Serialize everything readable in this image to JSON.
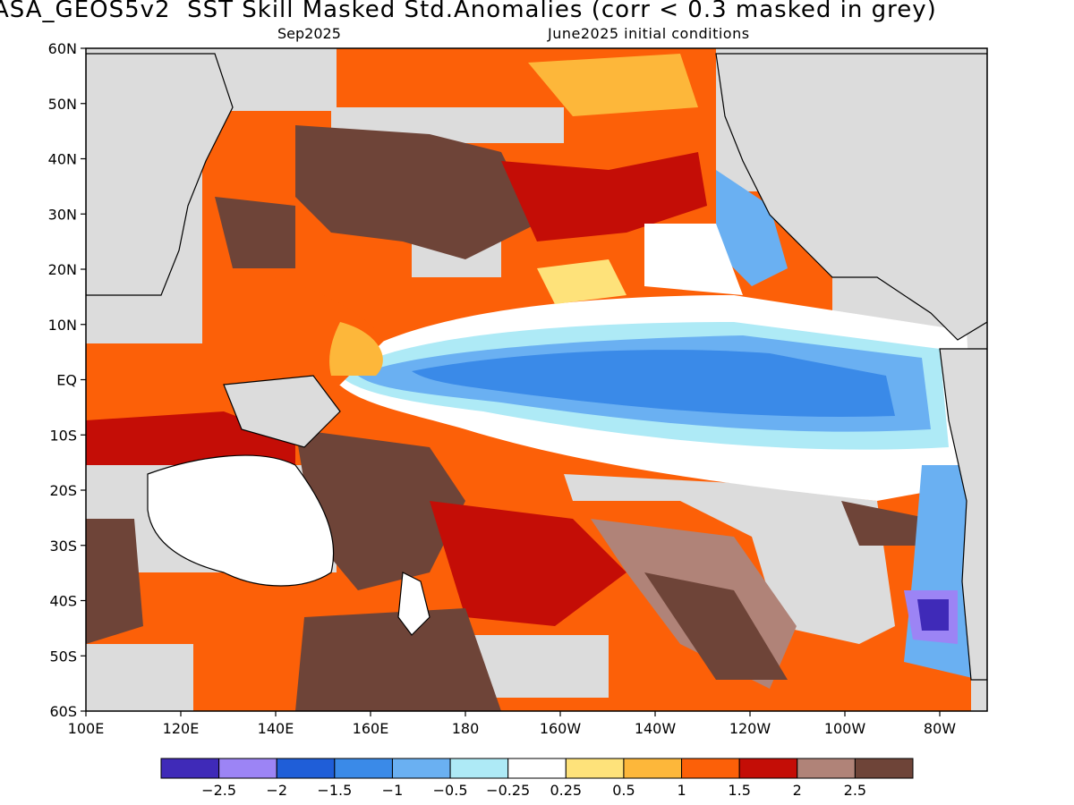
{
  "header": {
    "title": "ASA_GEOS5v2  SST Skill Masked Std.Anomalies (corr < 0.3 masked in grey)",
    "valid_month": "Sep2025",
    "init_conditions": "June2025 initial conditions"
  },
  "axes": {
    "lat_labels": [
      "60N",
      "50N",
      "40N",
      "30N",
      "20N",
      "10N",
      "EQ",
      "10S",
      "20S",
      "30S",
      "40S",
      "50S",
      "60S"
    ],
    "lon_labels": [
      "100E",
      "120E",
      "140E",
      "160E",
      "180",
      "160W",
      "140W",
      "120W",
      "100W",
      "80W"
    ]
  },
  "legend": {
    "colors": [
      "#3f2ab8",
      "#9c84f5",
      "#1f5ed8",
      "#3a8ae8",
      "#6ab0f2",
      "#aeeaf6",
      "#ffffff",
      "#fee27a",
      "#fdb73a",
      "#fc6008",
      "#c40d06",
      "#b08378",
      "#6e4438"
    ],
    "tick_labels": [
      "-2.5",
      "-2",
      "-1.5",
      "-1",
      "-0.5",
      "-0.25",
      "0.25",
      "0.5",
      "1",
      "1.5",
      "2",
      "2.5"
    ]
  },
  "map": {
    "mask_color": "#dcdcdc",
    "land_color": "#ffffff",
    "coast_color": "#000000"
  }
}
